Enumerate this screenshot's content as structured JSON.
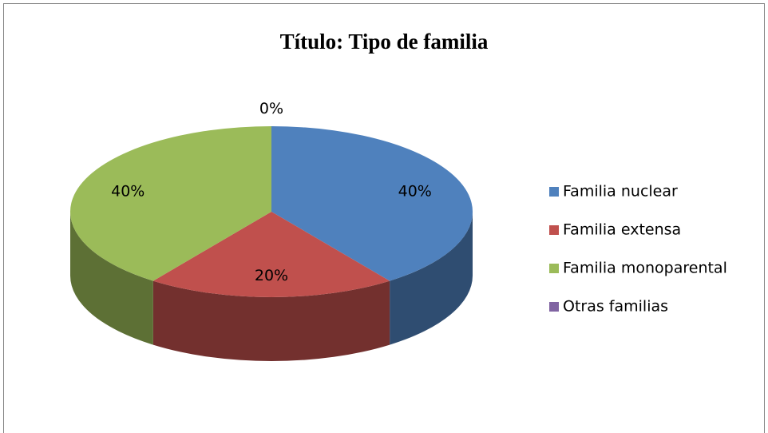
{
  "chart_data": {
    "type": "pie",
    "title": "Título: Tipo de familia",
    "categories": [
      "Familia nuclear",
      "Familia extensa",
      "Familia monoparental",
      "Otras familias"
    ],
    "values": [
      40,
      20,
      40,
      0
    ],
    "value_labels": [
      "40%",
      "20%",
      "40%",
      "0%"
    ],
    "colors": [
      "#4f81bd",
      "#c0504d",
      "#9bbb59",
      "#8064a2"
    ],
    "legend": "right"
  }
}
